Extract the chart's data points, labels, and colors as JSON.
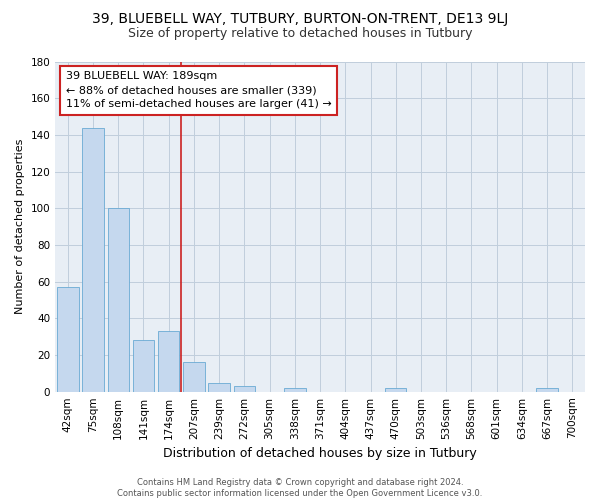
{
  "title1": "39, BLUEBELL WAY, TUTBURY, BURTON-ON-TRENT, DE13 9LJ",
  "title2": "Size of property relative to detached houses in Tutbury",
  "xlabel": "Distribution of detached houses by size in Tutbury",
  "ylabel": "Number of detached properties",
  "bar_labels": [
    "42sqm",
    "75sqm",
    "108sqm",
    "141sqm",
    "174sqm",
    "207sqm",
    "239sqm",
    "272sqm",
    "305sqm",
    "338sqm",
    "371sqm",
    "404sqm",
    "437sqm",
    "470sqm",
    "503sqm",
    "536sqm",
    "568sqm",
    "601sqm",
    "634sqm",
    "667sqm",
    "700sqm"
  ],
  "bar_values": [
    57,
    144,
    100,
    28,
    33,
    16,
    5,
    3,
    0,
    2,
    0,
    0,
    0,
    2,
    0,
    0,
    0,
    0,
    0,
    2,
    0
  ],
  "bar_color": "#c5d8ee",
  "bar_edgecolor": "#6aaad4",
  "highlight_line_color": "#cc2222",
  "annotation_line1": "39 BLUEBELL WAY: 189sqm",
  "annotation_line2": "← 88% of detached houses are smaller (339)",
  "annotation_line3": "11% of semi-detached houses are larger (41) →",
  "annotation_box_edgecolor": "#cc2222",
  "ylim": [
    0,
    180
  ],
  "yticks": [
    0,
    20,
    40,
    60,
    80,
    100,
    120,
    140,
    160,
    180
  ],
  "grid_color": "#c0cedc",
  "bg_color": "#e8eef5",
  "footer_text": "Contains HM Land Registry data © Crown copyright and database right 2024.\nContains public sector information licensed under the Open Government Licence v3.0.",
  "title1_fontsize": 10,
  "title2_fontsize": 9,
  "xlabel_fontsize": 9,
  "ylabel_fontsize": 8,
  "tick_fontsize": 7.5,
  "annotation_fontsize": 8,
  "footer_fontsize": 6,
  "line_x_index": 4.5
}
